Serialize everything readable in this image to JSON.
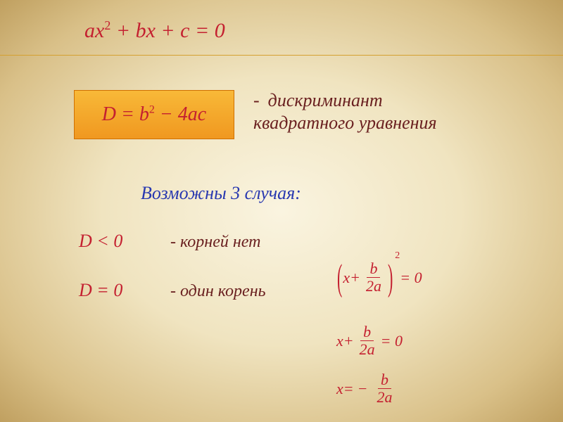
{
  "colors": {
    "accent_red": "#c42030",
    "accent_brown": "#6a2020",
    "accent_blue": "#2838b0",
    "box_gradient_top": "#f8b938",
    "box_gradient_bottom": "#f09820",
    "box_border": "#d07000",
    "rule": "#d4a030",
    "bg_center": "#faf4e0",
    "bg_edge": "#c0a060"
  },
  "typography": {
    "base_font": "Georgia / Times New Roman",
    "main_eq_fontsize": 30,
    "formula_fontsize": 28,
    "text_fontsize": 26,
    "case_label_fontsize": 24,
    "right_eq_fontsize": 22,
    "style": "italic"
  },
  "main_equation": {
    "a": "ax",
    "exp": "2",
    "rest": " + bx + c = 0"
  },
  "discriminant": {
    "D": "D",
    "eq": " = ",
    "b": "b",
    "exp": "2",
    "rest": " − 4ac",
    "dash": "-",
    "label1": "дискриминант",
    "label2": "квадратного уравнения"
  },
  "cases_title": "Возможны 3 случая:",
  "case1": {
    "cond": "D < 0",
    "label": "- корней нет"
  },
  "case2": {
    "cond": "D = 0",
    "label": "- один корень"
  },
  "right_equations": {
    "eq1": {
      "lp": "(",
      "x": "x",
      "plus": " + ",
      "num": "b",
      "den": "2a",
      "rp": ")",
      "sup": "2",
      "eq0": " = 0"
    },
    "eq2": {
      "x": "x",
      "plus": " + ",
      "num": "b",
      "den": "2a",
      "eq0": " = 0"
    },
    "eq3": {
      "x": "x",
      "eq": " = ",
      "minus": "−",
      "num": "b",
      "den": "2a"
    }
  }
}
